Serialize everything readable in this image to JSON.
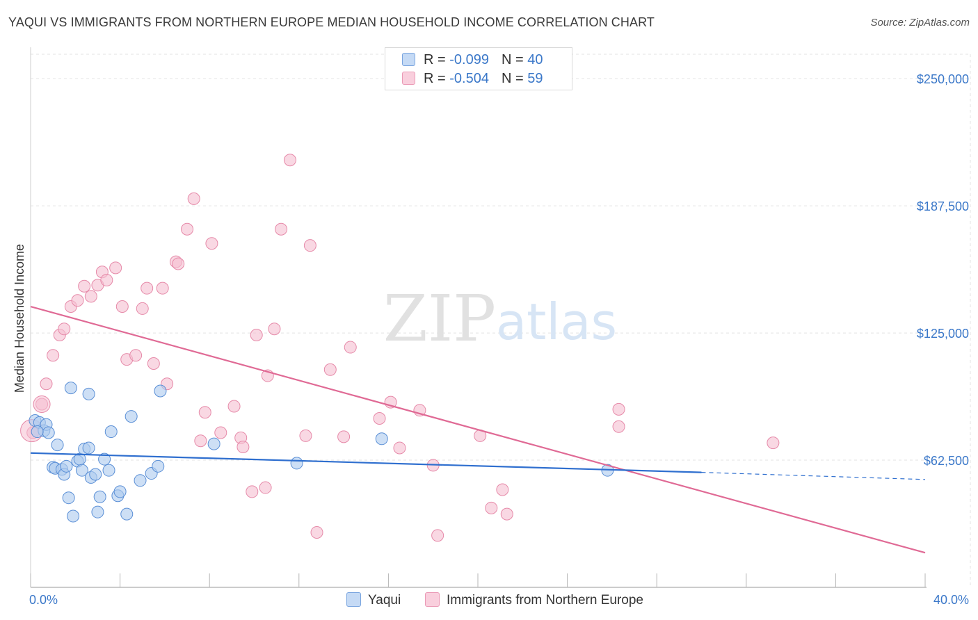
{
  "title": "YAQUI VS IMMIGRANTS FROM NORTHERN EUROPE MEDIAN HOUSEHOLD INCOME CORRELATION CHART",
  "source": "Source: ZipAtlas.com",
  "watermark": {
    "zip": "ZIP",
    "atlas": "atlas"
  },
  "legend_top": [
    {
      "r_label": "R = ",
      "r_value": "-0.099",
      "n_label": "N = ",
      "n_value": "40"
    },
    {
      "r_label": "R = ",
      "r_value": "-0.504",
      "n_label": "N = ",
      "n_value": "59"
    }
  ],
  "colors": {
    "yaqui_fill": "#aecbef",
    "yaqui_stroke": "#5a8fd6",
    "yaqui_line": "#2f6fcf",
    "immig_fill": "#f6c0d2",
    "immig_stroke": "#e68aa9",
    "immig_line": "#e06a95",
    "axis_label": "#3b78c9",
    "grid": "#e3e3e3"
  },
  "chart_data": {
    "type": "scatter",
    "title": "YAQUI VS IMMIGRANTS FROM NORTHERN EUROPE MEDIAN HOUSEHOLD INCOME CORRELATION CHART",
    "xlabel": "",
    "ylabel": "Median Household Income",
    "xlim": [
      0,
      40
    ],
    "ylim": [
      0,
      262000
    ],
    "x_tick_labels": [
      "0.0%",
      "40.0%"
    ],
    "y_ticks": [
      62500,
      125000,
      187500,
      250000
    ],
    "y_tick_labels": [
      "$62,500",
      "$125,000",
      "$187,500",
      "$250,000"
    ],
    "series": [
      {
        "name": "Yaqui",
        "r": -0.099,
        "n": 40,
        "trend": {
          "x0": 0,
          "y0": 66000,
          "x1": 30.0,
          "y1": 56500,
          "dash_x1": 40,
          "dash_y1": 53000
        },
        "points": [
          [
            0.2,
            82000
          ],
          [
            0.4,
            81000
          ],
          [
            0.6,
            77000
          ],
          [
            0.7,
            80000
          ],
          [
            0.8,
            76000
          ],
          [
            1.2,
            70000
          ],
          [
            1.0,
            59000
          ],
          [
            1.1,
            58500
          ],
          [
            1.4,
            58000
          ],
          [
            1.5,
            55500
          ],
          [
            1.6,
            59500
          ],
          [
            1.7,
            44000
          ],
          [
            1.8,
            98000
          ],
          [
            1.9,
            35000
          ],
          [
            2.1,
            62000
          ],
          [
            2.2,
            63000
          ],
          [
            2.3,
            57500
          ],
          [
            2.4,
            68000
          ],
          [
            2.6,
            68500
          ],
          [
            2.7,
            54000
          ],
          [
            2.9,
            55500
          ],
          [
            3.0,
            37000
          ],
          [
            3.1,
            44500
          ],
          [
            3.3,
            63000
          ],
          [
            3.5,
            57500
          ],
          [
            3.6,
            76500
          ],
          [
            2.6,
            95000
          ],
          [
            3.9,
            45000
          ],
          [
            4.0,
            47000
          ],
          [
            4.3,
            36000
          ],
          [
            4.5,
            84000
          ],
          [
            4.9,
            52500
          ],
          [
            5.4,
            56000
          ],
          [
            5.7,
            59500
          ],
          [
            5.8,
            96500
          ],
          [
            8.2,
            70500
          ],
          [
            11.9,
            61000
          ],
          [
            15.7,
            73000
          ],
          [
            25.8,
            57500
          ],
          [
            0.3,
            76500
          ]
        ]
      },
      {
        "name": "Immigrants from Northern Europe",
        "r": -0.504,
        "n": 59,
        "trend": {
          "x0": 0,
          "y0": 138000,
          "x1": 40,
          "y1": 17000
        },
        "points": [
          [
            0.1,
            76000
          ],
          [
            0.5,
            90000
          ],
          [
            0.7,
            100000
          ],
          [
            1.0,
            114000
          ],
          [
            1.3,
            124000
          ],
          [
            1.5,
            127000
          ],
          [
            1.8,
            138000
          ],
          [
            2.1,
            141000
          ],
          [
            2.4,
            148000
          ],
          [
            2.7,
            143000
          ],
          [
            3.0,
            148500
          ],
          [
            3.2,
            155000
          ],
          [
            3.4,
            151000
          ],
          [
            3.8,
            157000
          ],
          [
            4.1,
            138000
          ],
          [
            4.3,
            112000
          ],
          [
            4.7,
            114000
          ],
          [
            5.0,
            137000
          ],
          [
            5.2,
            147000
          ],
          [
            5.5,
            110000
          ],
          [
            5.9,
            147000
          ],
          [
            6.1,
            100000
          ],
          [
            6.5,
            160000
          ],
          [
            6.6,
            159000
          ],
          [
            7.0,
            176000
          ],
          [
            7.3,
            191000
          ],
          [
            7.6,
            72000
          ],
          [
            7.8,
            86000
          ],
          [
            8.1,
            169000
          ],
          [
            8.5,
            76000
          ],
          [
            9.1,
            89000
          ],
          [
            9.4,
            73500
          ],
          [
            9.5,
            69000
          ],
          [
            9.9,
            47000
          ],
          [
            10.1,
            124000
          ],
          [
            10.5,
            49000
          ],
          [
            10.6,
            104000
          ],
          [
            10.9,
            127000
          ],
          [
            11.2,
            176000
          ],
          [
            11.6,
            210000
          ],
          [
            12.3,
            74500
          ],
          [
            12.5,
            168000
          ],
          [
            12.8,
            27000
          ],
          [
            13.4,
            107000
          ],
          [
            14.0,
            74000
          ],
          [
            14.3,
            118000
          ],
          [
            15.6,
            83000
          ],
          [
            16.1,
            91000
          ],
          [
            16.5,
            68500
          ],
          [
            17.4,
            87000
          ],
          [
            18.0,
            60000
          ],
          [
            18.2,
            25500
          ],
          [
            20.1,
            74500
          ],
          [
            20.6,
            39000
          ],
          [
            21.1,
            48000
          ],
          [
            21.3,
            36000
          ],
          [
            26.3,
            87500
          ],
          [
            26.3,
            79000
          ],
          [
            33.2,
            71000
          ]
        ]
      }
    ]
  },
  "bottom_legend": {
    "yaqui": "Yaqui",
    "immig": "Immigrants from Northern Europe"
  }
}
